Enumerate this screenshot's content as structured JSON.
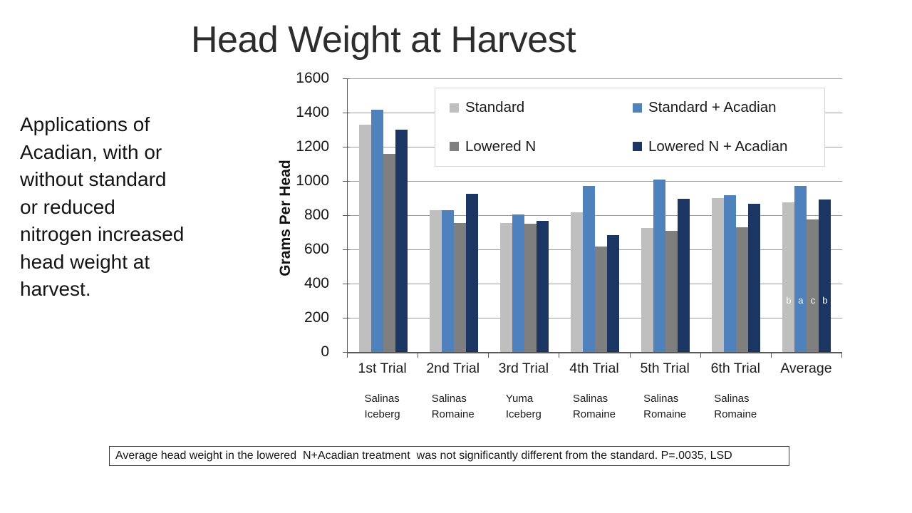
{
  "slide": {
    "title": "Head Weight at Harvest",
    "left_note": "Applications of\nAcadian, with or\nwithout standard\nor reduced\nnitrogen increased\nhead weight at\nharvest.",
    "footnote": "Average head weight in the lowered  N+Acadian treatment  was not significantly different from the standard. P=.0035, LSD"
  },
  "chart_data": {
    "type": "bar",
    "title": "",
    "xlabel": "",
    "ylabel": "Grams Per Head",
    "ylim": [
      0,
      1600
    ],
    "yticks": [
      0,
      200,
      400,
      600,
      800,
      1000,
      1200,
      1400,
      1600
    ],
    "grid": true,
    "legend_position": "top-right-overlay",
    "categories": [
      "1st Trial",
      "2nd Trial",
      "3rd Trial",
      "4th Trial",
      "5th Trial",
      "6th Trial",
      "Average"
    ],
    "category_sublabels": [
      "Salinas\nIceberg",
      "Salinas\nRomaine",
      "Yuma\nIceberg",
      "Salinas\nRomaine",
      "Salinas\nRomaine",
      "Salinas\nRomaine",
      ""
    ],
    "series": [
      {
        "name": "Standard",
        "color": "#bfbfbf",
        "values": [
          1330,
          830,
          755,
          815,
          725,
          900,
          875
        ]
      },
      {
        "name": "Standard + Acadian",
        "color": "#4f81bd",
        "values": [
          1415,
          828,
          805,
          970,
          1010,
          915,
          970
        ]
      },
      {
        "name": "Lowered N",
        "color": "#7f7f7f",
        "values": [
          1160,
          753,
          750,
          615,
          710,
          730,
          775
        ]
      },
      {
        "name": "Lowered N + Acadian",
        "color": "#1c3663",
        "values": [
          1300,
          925,
          765,
          685,
          895,
          865,
          890
        ]
      }
    ],
    "annotations": {
      "category": "Average",
      "category_index": 6,
      "letters": [
        "b",
        "a",
        "c",
        "b"
      ]
    },
    "axis_color": "#595959",
    "gridline_color": "#9d9d9d"
  }
}
